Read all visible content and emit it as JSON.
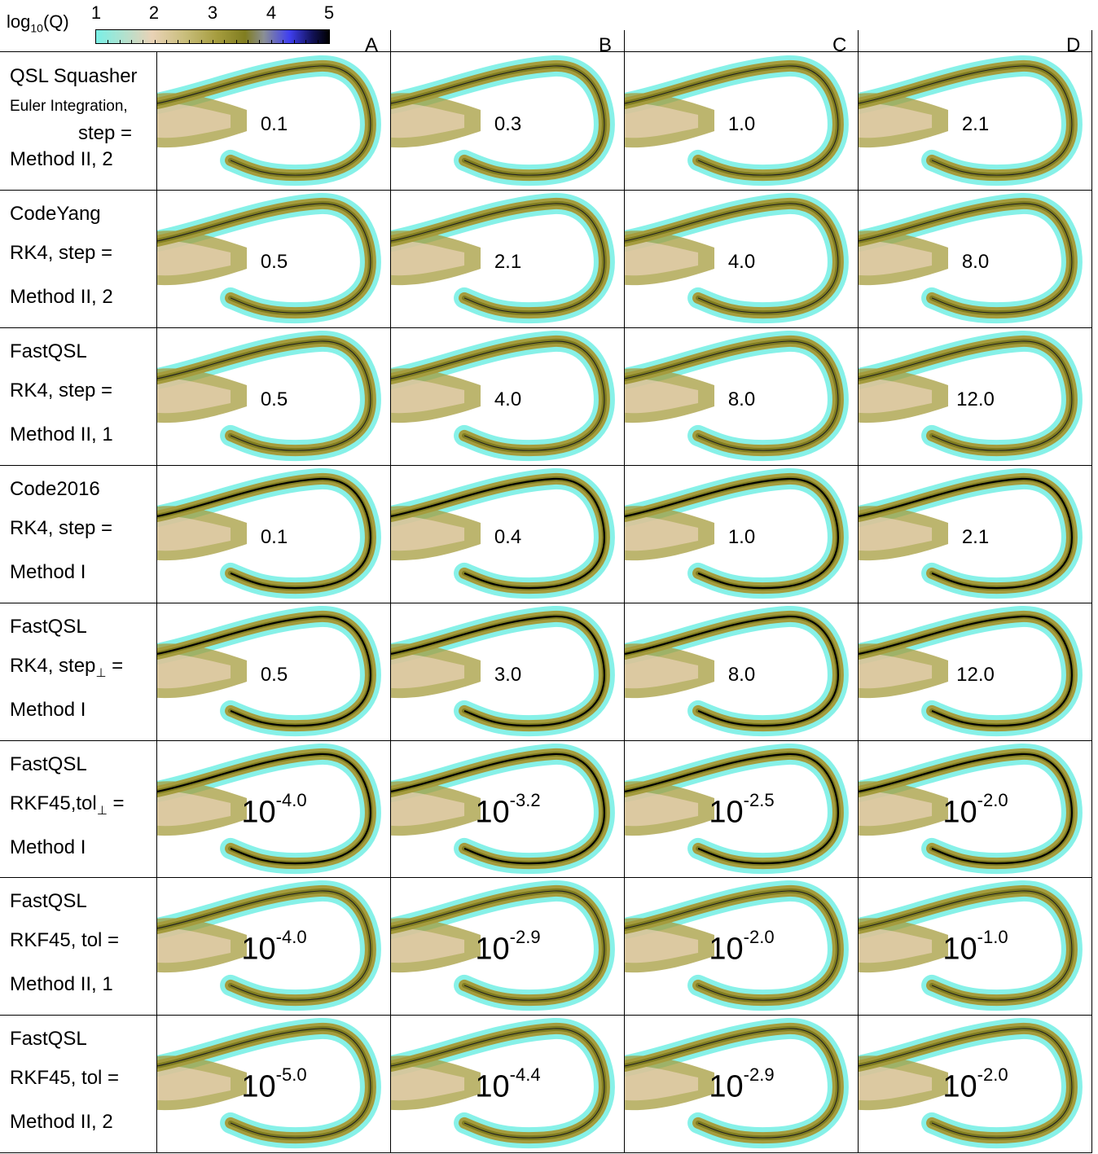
{
  "colorbar": {
    "label_base": "log",
    "label_sub": "10",
    "label_var": "(Q)",
    "ticks": [
      "1",
      "2",
      "3",
      "4",
      "5"
    ],
    "colors": [
      "#7af0e6",
      "#e9d2b6",
      "#a59c3e",
      "#807d20",
      "#3f3ff0",
      "#000000"
    ]
  },
  "columns": [
    "A",
    "B",
    "C",
    "D"
  ],
  "rows": [
    {
      "l1": "QSL Squasher",
      "l2": "Euler Integration,",
      "l3": "step =",
      "l4": "Method II, 2",
      "values": [
        {
          "t": "0.1"
        },
        {
          "t": "0.3"
        },
        {
          "t": "1.0"
        },
        {
          "t": "2.1"
        }
      ]
    },
    {
      "l1": "CodeYang",
      "l2": "RK4,  step =",
      "l3": "",
      "l4": "Method II, 2",
      "values": [
        {
          "t": "0.5"
        },
        {
          "t": "2.1"
        },
        {
          "t": "4.0"
        },
        {
          "t": "8.0"
        }
      ]
    },
    {
      "l1": "FastQSL",
      "l2": "RK4,  step =",
      "l3": "",
      "l4": "Method II, 1",
      "values": [
        {
          "t": "0.5"
        },
        {
          "t": "4.0"
        },
        {
          "t": "8.0"
        },
        {
          "t": "12.0"
        }
      ]
    },
    {
      "l1": "Code2016",
      "l2": "RK4,  step =",
      "l3": "",
      "l4": "Method I",
      "values": [
        {
          "t": "0.1"
        },
        {
          "t": "0.4"
        },
        {
          "t": "1.0"
        },
        {
          "t": "2.1"
        }
      ]
    },
    {
      "l1": "FastQSL",
      "l2": "RK4, step",
      "l2sub": "⊥",
      "l2end": " =",
      "l3": "",
      "l4": "Method I",
      "values": [
        {
          "t": "0.5"
        },
        {
          "t": "3.0"
        },
        {
          "t": "8.0"
        },
        {
          "t": "12.0"
        }
      ]
    },
    {
      "l1": "FastQSL",
      "l2": "RKF45,tol",
      "l2sub": "⊥",
      "l2end": " =",
      "l3": "",
      "l4": "Method I",
      "values": [
        {
          "b": "10",
          "e": "-4.0"
        },
        {
          "b": "10",
          "e": "-3.2"
        },
        {
          "b": "10",
          "e": "-2.5"
        },
        {
          "b": "10",
          "e": "-2.0"
        }
      ]
    },
    {
      "l1": "FastQSL",
      "l2": "RKF45, tol =",
      "l3": "",
      "l4": "Method II, 1",
      "values": [
        {
          "b": "10",
          "e": "-4.0"
        },
        {
          "b": "10",
          "e": "-2.9"
        },
        {
          "b": "10",
          "e": "-2.0"
        },
        {
          "b": "10",
          "e": "-1.0"
        }
      ]
    },
    {
      "l1": "FastQSL",
      "l2": "RKF45, tol =",
      "l3": "",
      "l4": "Method II, 2",
      "values": [
        {
          "b": "10",
          "e": "-5.0"
        },
        {
          "b": "10",
          "e": "-4.4"
        },
        {
          "b": "10",
          "e": "-2.9"
        },
        {
          "b": "10",
          "e": "-2.0"
        }
      ]
    }
  ]
}
